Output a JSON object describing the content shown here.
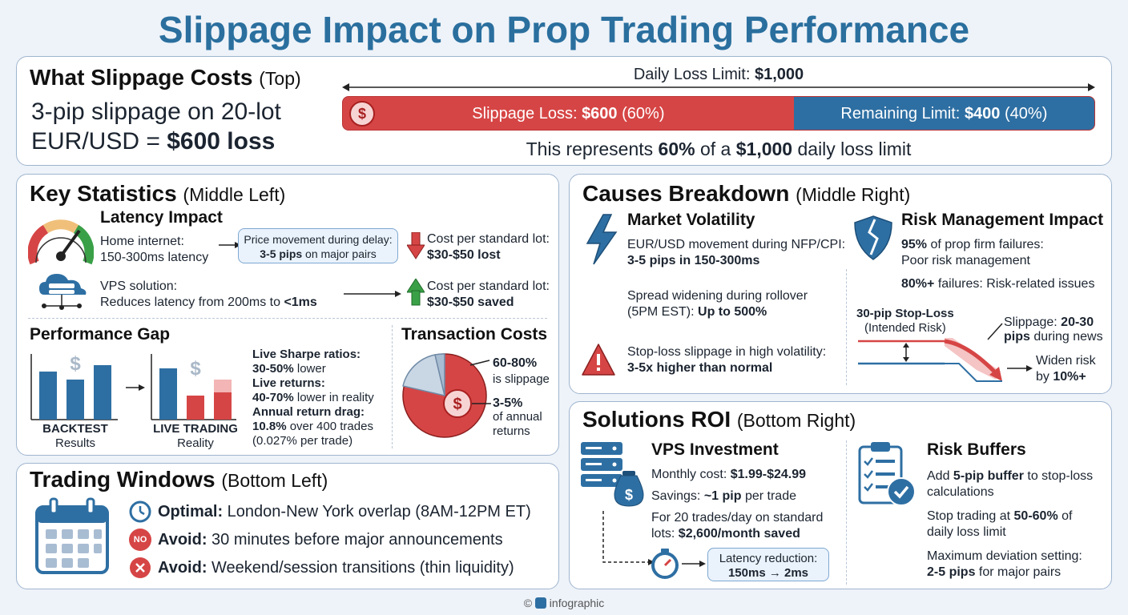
{
  "title": "Slippage Impact on Prop Trading Performance",
  "colors": {
    "accent": "#2a6f9e",
    "red": "#d64545",
    "blue": "#2e6fa3",
    "green": "#3aa047"
  },
  "top": {
    "heading": "What Slippage Costs",
    "heading_sub": "(Top)",
    "line1": "3-pip slippage on 20-lot",
    "line2a": "EUR/USD = ",
    "line2b": "$600 loss",
    "limit_label": "Daily Loss Limit: ",
    "limit_value": "$1,000",
    "bar": {
      "loss_label": "Slippage Loss: ",
      "loss_value": "$600",
      "loss_pct": "(60%)",
      "loss_fraction": 0.6,
      "remain_label": "Remaining Limit: ",
      "remain_value": "$400",
      "remain_pct": "(40%)"
    },
    "note_a": "This represents ",
    "note_b": "60%",
    "note_c": " of a ",
    "note_d": "$1,000",
    "note_e": " daily loss limit"
  },
  "stats": {
    "heading": "Key Statistics",
    "heading_sub": "(Middle Left)",
    "latency_title": "Latency Impact",
    "home_1": "Home internet:",
    "home_2": "150-300ms latency",
    "delay_1": "Price movement during delay:",
    "delay_2b": "3-5 pips",
    "delay_2": " on major pairs",
    "cost_label": "Cost per standard lot:",
    "cost_lost": "$30-$50 lost",
    "vps_1": "VPS solution:",
    "vps_2": "Reduces latency from 200ms to ",
    "vps_2b": "<1ms",
    "cost_label2": "Cost per standard lot:",
    "cost_saved": "$30-$50 saved",
    "gap_title": "Performance Gap",
    "backtest": "BACKTEST",
    "backtest_sub": "Results",
    "live": "LIVE TRADING",
    "live_sub": "Reality",
    "sharpe_b": "Live Sharpe ratios:",
    "sharpe_1b": "30-50%",
    "sharpe_1": " lower",
    "returns_b": "Live returns:",
    "returns_1b": "40-70%",
    "returns_1": " lower in reality",
    "drag_b": "Annual return drag:",
    "drag_1b": "10.8%",
    "drag_1": " over 400 trades",
    "drag_2": "(0.027% per trade)",
    "tc_title": "Transaction Costs",
    "tc_a": "60-80%",
    "tc_a2": "is slippage",
    "tc_b": "3-5%",
    "tc_b2": "of annual",
    "tc_b3": "returns"
  },
  "windows": {
    "heading": "Trading Windows",
    "heading_sub": "(Bottom Left)",
    "items": [
      {
        "b": "Optimal:",
        "t": " London-New York overlap (8AM-12PM ET)",
        "icon": "clock-icon"
      },
      {
        "b": "Avoid:",
        "t": " 30 minutes before major announcements",
        "icon": "no-icon"
      },
      {
        "b": "Avoid:",
        "t": " Weekend/session transitions (thin liquidity)",
        "icon": "x-icon"
      }
    ],
    "no_text": "NO"
  },
  "causes": {
    "heading": "Causes Breakdown",
    "heading_sub": "(Middle Right)",
    "mv_title": "Market Volatility",
    "mv_1": "EUR/USD movement during NFP/CPI:",
    "mv_2": "3-5 pips in 150-300ms",
    "spread_1": "Spread widening during rollover",
    "spread_2": "(5PM EST): ",
    "spread_2b": "Up to 500%",
    "sl_1": "Stop-loss slippage in high volatility:",
    "sl_2": "3-5x higher than normal",
    "rm_title": "Risk Management Impact",
    "rm_1b": "95%",
    "rm_1": " of prop firm failures:",
    "rm_2": "Poor risk management",
    "rm_3b": "80%+",
    "rm_3": " failures: Risk-related issues",
    "stop_1": "30-pip Stop-Loss",
    "stop_2": "(Intended Risk)",
    "slip_1a": "Slippage: ",
    "slip_1b": "20-30",
    "slip_2": "pips",
    "slip_2b": " during news",
    "widen_1": "Widen risk",
    "widen_2a": "by ",
    "widen_2b": "10%+"
  },
  "solutions": {
    "heading": "Solutions ROI",
    "heading_sub": "(Bottom Right)",
    "vps_title": "VPS Investment",
    "cost_a": "Monthly cost: ",
    "cost_b": "$1.99-$24.99",
    "sav_a": "Savings: ",
    "sav_b": "~1 pip",
    "sav_c": " per trade",
    "t20_1": "For 20 trades/day on standard",
    "t20_2a": "lots: ",
    "t20_2b": "$2,600/month saved",
    "lat_1": "Latency reduction:",
    "lat_2": "150ms → 2ms",
    "rb_title": "Risk Buffers",
    "rb_1a": "Add ",
    "rb_1b": "5-pip buffer",
    "rb_1c": " to stop-loss",
    "rb_2": "calculations",
    "rb_3a": "Stop trading at ",
    "rb_3b": "50-60%",
    "rb_3c": " of",
    "rb_4": "daily loss limit",
    "rb_5": "Maximum deviation setting:",
    "rb_6b": "2-5 pips",
    "rb_6": " for major pairs"
  },
  "footer": {
    "copy": "©",
    "brand": "infographic"
  }
}
